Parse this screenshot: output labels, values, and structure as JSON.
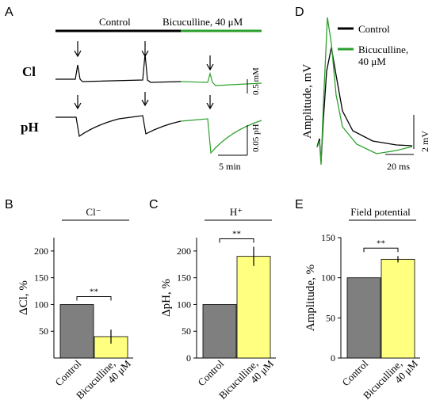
{
  "panel_a": {
    "letter": "A",
    "condition_control": "Control",
    "condition_drug": "Bicuculline, 40 μM",
    "trace_cl": "Cl",
    "trace_ph": "pH",
    "scale_cl": "0.5 mM",
    "scale_ph": "0.05 pH",
    "scale_time": "5 min"
  },
  "panel_d": {
    "letter": "D",
    "legend_control": "Control",
    "legend_drug_1": "Bicuculline,",
    "legend_drug_2": "40 μM",
    "ylabel": "Amplitude, mV",
    "scale_amp": "2 mV",
    "scale_time": "20 ms"
  },
  "chart_data": [
    {
      "type": "bar",
      "panel": "B",
      "title": "Cl⁻",
      "ylabel": "ΔCl, %",
      "categories": [
        "Control",
        "Bicuculline, 40 μM"
      ],
      "values": [
        100,
        40
      ],
      "errors": [
        null,
        13
      ],
      "colors": [
        "#7f7f7f",
        "#ffff80"
      ],
      "ylim": [
        0,
        225
      ],
      "yticks": [
        50,
        100,
        150,
        200
      ],
      "significance": "**"
    },
    {
      "type": "bar",
      "panel": "C",
      "title": "H⁺",
      "ylabel": "ΔpH, %",
      "categories": [
        "Control",
        "Bicuculline, 40 μM"
      ],
      "values": [
        100,
        190
      ],
      "errors": [
        null,
        18
      ],
      "colors": [
        "#7f7f7f",
        "#ffff80"
      ],
      "ylim": [
        0,
        225
      ],
      "yticks": [
        0,
        50,
        100,
        150,
        200
      ],
      "significance": "**"
    },
    {
      "type": "bar",
      "panel": "E",
      "title": "Field potential",
      "ylabel": "Amplitude, %",
      "categories": [
        "Control",
        "Bicuculline, 40 μM"
      ],
      "values": [
        100,
        123
      ],
      "errors": [
        null,
        4
      ],
      "colors": [
        "#7f7f7f",
        "#ffff80"
      ],
      "ylim": [
        0,
        150
      ],
      "yticks": [
        0,
        50,
        100,
        150
      ],
      "significance": "**"
    }
  ]
}
